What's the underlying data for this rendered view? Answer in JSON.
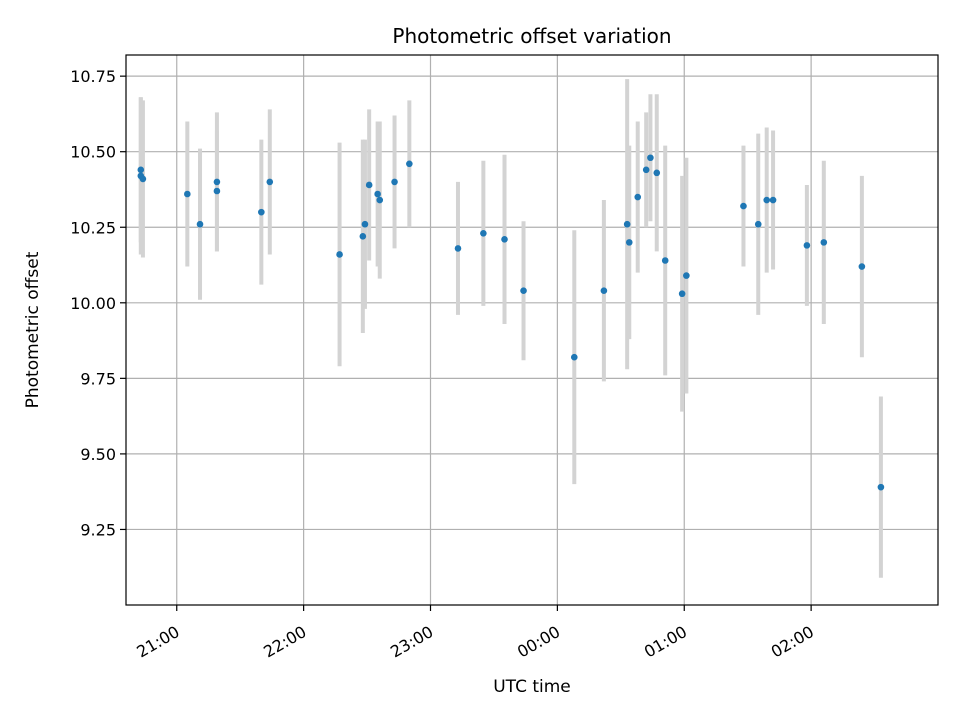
{
  "chart_data": {
    "type": "scatter",
    "title": "Photometric offset variation",
    "xlabel": "UTC time",
    "ylabel": "Photometric offset",
    "x_tick_labels": [
      "21:00",
      "22:00",
      "23:00",
      "00:00",
      "01:00",
      "02:00"
    ],
    "y_tick_labels": [
      "9.25",
      "9.50",
      "9.75",
      "10.00",
      "10.25",
      "10.50",
      "10.75"
    ],
    "x_tick_hours": [
      21,
      22,
      23,
      24,
      25,
      26
    ],
    "y_ticks": [
      9.25,
      9.5,
      9.75,
      10.0,
      10.25,
      10.5,
      10.75
    ],
    "xlim_hours": [
      20.6,
      27.0
    ],
    "ylim": [
      9.0,
      10.82
    ],
    "grid": true,
    "colors": {
      "points": "#1f77b4",
      "errorbars": "#d3d3d3",
      "grid": "#b0b0b0"
    },
    "points": [
      {
        "x": "20:43",
        "y": 10.44,
        "err": 0.24
      },
      {
        "x": "20:43",
        "y": 10.42,
        "err": 0.26
      },
      {
        "x": "20:44",
        "y": 10.41,
        "err": 0.26
      },
      {
        "x": "21:05",
        "y": 10.36,
        "err": 0.24
      },
      {
        "x": "21:11",
        "y": 10.26,
        "err": 0.25
      },
      {
        "x": "21:19",
        "y": 10.4,
        "err": 0.23
      },
      {
        "x": "21:19",
        "y": 10.37,
        "err": 0.2
      },
      {
        "x": "21:40",
        "y": 10.3,
        "err": 0.24
      },
      {
        "x": "21:44",
        "y": 10.4,
        "err": 0.24
      },
      {
        "x": "22:17",
        "y": 10.16,
        "err": 0.37
      },
      {
        "x": "22:28",
        "y": 10.22,
        "err": 0.32
      },
      {
        "x": "22:29",
        "y": 10.26,
        "err": 0.28
      },
      {
        "x": "22:31",
        "y": 10.39,
        "err": 0.25
      },
      {
        "x": "22:35",
        "y": 10.36,
        "err": 0.24
      },
      {
        "x": "22:36",
        "y": 10.34,
        "err": 0.26
      },
      {
        "x": "22:43",
        "y": 10.4,
        "err": 0.22
      },
      {
        "x": "22:50",
        "y": 10.46,
        "err": 0.21
      },
      {
        "x": "23:13",
        "y": 10.18,
        "err": 0.22
      },
      {
        "x": "23:25",
        "y": 10.23,
        "err": 0.24
      },
      {
        "x": "23:35",
        "y": 10.21,
        "err": 0.28
      },
      {
        "x": "23:44",
        "y": 10.04,
        "err": 0.23
      },
      {
        "x": "00:08",
        "y": 9.82,
        "err": 0.42
      },
      {
        "x": "00:22",
        "y": 10.04,
        "err": 0.3
      },
      {
        "x": "00:33",
        "y": 10.26,
        "err": 0.48
      },
      {
        "x": "00:34",
        "y": 10.2,
        "err": 0.32
      },
      {
        "x": "00:38",
        "y": 10.35,
        "err": 0.25
      },
      {
        "x": "00:42",
        "y": 10.44,
        "err": 0.19
      },
      {
        "x": "00:44",
        "y": 10.48,
        "err": 0.21
      },
      {
        "x": "00:47",
        "y": 10.43,
        "err": 0.26
      },
      {
        "x": "00:51",
        "y": 10.14,
        "err": 0.38
      },
      {
        "x": "00:59",
        "y": 10.03,
        "err": 0.39
      },
      {
        "x": "01:01",
        "y": 10.09,
        "err": 0.39
      },
      {
        "x": "01:28",
        "y": 10.32,
        "err": 0.2
      },
      {
        "x": "01:35",
        "y": 10.26,
        "err": 0.3
      },
      {
        "x": "01:39",
        "y": 10.34,
        "err": 0.24
      },
      {
        "x": "01:42",
        "y": 10.34,
        "err": 0.23
      },
      {
        "x": "01:58",
        "y": 10.19,
        "err": 0.2
      },
      {
        "x": "02:06",
        "y": 10.2,
        "err": 0.27
      },
      {
        "x": "02:24",
        "y": 10.12,
        "err": 0.3
      },
      {
        "x": "02:33",
        "y": 9.39,
        "err": 0.3
      }
    ]
  }
}
